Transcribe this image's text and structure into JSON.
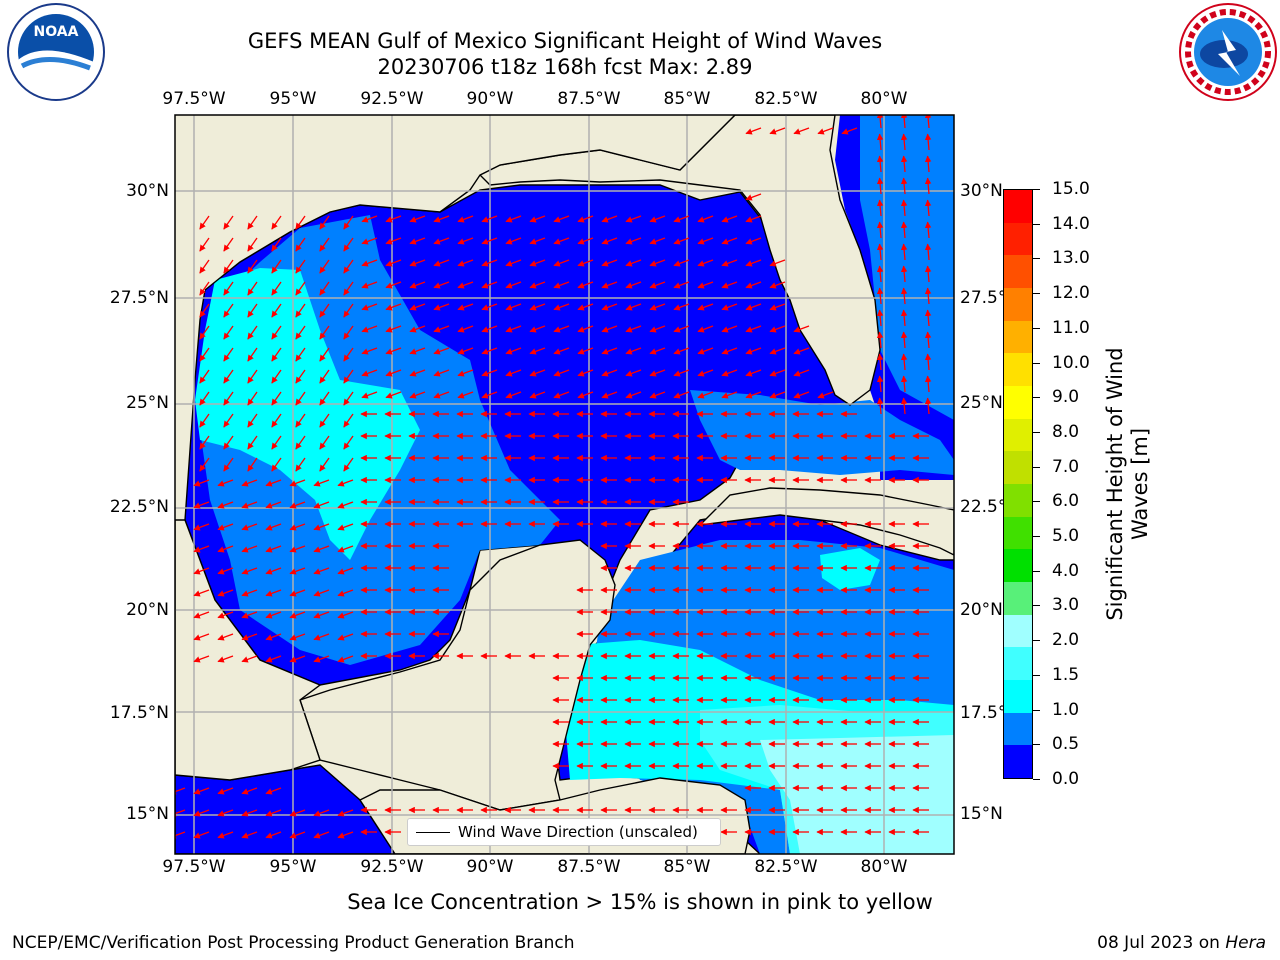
{
  "title": {
    "line1": "GEFS MEAN Gulf of Mexico Significant Height of Wind Waves",
    "line2": "20230706 t18z 168h fcst   Max: 2.89"
  },
  "logos": {
    "left": "noaa-logo",
    "right": "nws-logo",
    "left_text": "NOAA"
  },
  "map": {
    "lon_ticks": [
      "97.5°W",
      "95°W",
      "92.5°W",
      "90°W",
      "87.5°W",
      "85°W",
      "82.5°W",
      "80°W"
    ],
    "lat_ticks": [
      "30°N",
      "27.5°N",
      "25°N",
      "22.5°N",
      "20°N",
      "17.5°N",
      "15°N"
    ],
    "lon_range": [
      -98,
      -78.2
    ],
    "lat_range": [
      14,
      31.6
    ],
    "gridlines": true,
    "colors": {
      "land": "#efedd9",
      "coast": "#000000",
      "arrow": "#ff0000",
      "grid": "#b0b0b0"
    }
  },
  "legend": {
    "label": "Wind Wave Direction (unscaled)"
  },
  "colorbar": {
    "label_line1": "Significant Height of Wind",
    "label_line2": "Waves [m]",
    "ticks": [
      "0.0",
      "0.5",
      "1.0",
      "1.5",
      "2.0",
      "3.0",
      "4.0",
      "5.0",
      "6.0",
      "7.0",
      "8.0",
      "9.0",
      "10.0",
      "11.0",
      "12.0",
      "13.0",
      "14.0",
      "15.0"
    ],
    "colors": [
      "#0000ff",
      "#0080ff",
      "#00ffff",
      "#40ffff",
      "#a0ffff",
      "#58f079",
      "#00e000",
      "#40e000",
      "#80e000",
      "#c0e000",
      "#e0ef00",
      "#ffff00",
      "#ffe000",
      "#ffb000",
      "#ff8000",
      "#ff5000",
      "#ff2000",
      "#ff0000"
    ]
  },
  "notes": {
    "ice": "Sea Ice Concentration > 15% is shown in pink to yellow",
    "footer_left": "NCEP/EMC/Verification Post Processing Product Generation Branch",
    "footer_date": "08 Jul 2023 on ",
    "footer_machine": "Hera"
  }
}
